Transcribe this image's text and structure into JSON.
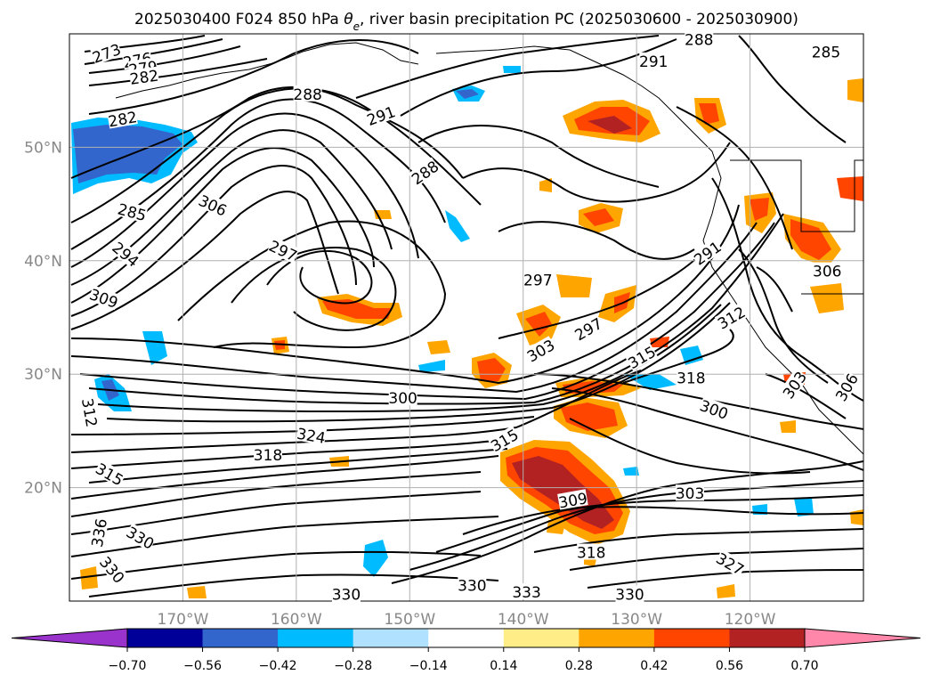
{
  "chart_data": {
    "type": "contour",
    "title": "2025030400 F024 850 hPa θe, river basin precipitation PC (2025030600 - 2025030900)",
    "title_segments": {
      "prefix": "2025030400 F024 850 hPa ",
      "symbol": "θ",
      "subscript": "e",
      "suffix": ", river basin precipitation PC (2025030600 - 2025030900)"
    },
    "extent": {
      "lon": [
        -180,
        -110
      ],
      "lat": [
        10,
        60
      ]
    },
    "grid": true,
    "lon_ticks": [
      {
        "lon": -170,
        "label": "170°W"
      },
      {
        "lon": -160,
        "label": "160°W"
      },
      {
        "lon": -150,
        "label": "150°W"
      },
      {
        "lon": -140,
        "label": "140°W"
      },
      {
        "lon": -130,
        "label": "130°W"
      },
      {
        "lon": -120,
        "label": "120°W"
      }
    ],
    "lat_ticks": [
      {
        "lat": 20,
        "label": "20°N"
      },
      {
        "lat": 30,
        "label": "30°N"
      },
      {
        "lat": 40,
        "label": "40°N"
      },
      {
        "lat": 50,
        "label": "50°N"
      }
    ],
    "colorbar": {
      "orientation": "horizontal",
      "extend": "both",
      "boundaries": [
        -0.7,
        -0.56,
        -0.42,
        -0.28,
        -0.14,
        0.14,
        0.28,
        0.42,
        0.56,
        0.7
      ],
      "labels": [
        "−0.70",
        "−0.56",
        "−0.42",
        "−0.28",
        "−0.14",
        "0.14",
        "0.28",
        "0.42",
        "0.56",
        "0.70"
      ],
      "under_color": "#9933cc",
      "colors": [
        "#000099",
        "#3366cc",
        "#00bbff",
        "#b0e2ff",
        "#ffffff",
        "#ffee88",
        "#ffa500",
        "#ff4500",
        "#b22222"
      ],
      "over_color": "#ff88aa"
    },
    "contour_labels": [
      {
        "text": "273",
        "lon": -176.7,
        "lat": 58.2,
        "rot": -20
      },
      {
        "text": "276",
        "lon": -174.0,
        "lat": 57.6,
        "rot": -10
      },
      {
        "text": "279",
        "lon": -173.5,
        "lat": 56.9,
        "rot": -8
      },
      {
        "text": "282",
        "lon": -173.4,
        "lat": 56.1,
        "rot": -8
      },
      {
        "text": "282",
        "lon": -175.3,
        "lat": 52.4,
        "rot": -10
      },
      {
        "text": "288",
        "lon": -159.0,
        "lat": 54.6,
        "rot": 0
      },
      {
        "text": "291",
        "lon": -152.5,
        "lat": 52.7,
        "rot": -20
      },
      {
        "text": "288",
        "lon": -148.6,
        "lat": 47.7,
        "rot": -35
      },
      {
        "text": "285",
        "lon": -174.5,
        "lat": 44.2,
        "rot": 15
      },
      {
        "text": "306",
        "lon": -167.4,
        "lat": 44.8,
        "rot": 25
      },
      {
        "text": "297",
        "lon": -161.2,
        "lat": 40.8,
        "rot": 25
      },
      {
        "text": "294",
        "lon": -175.1,
        "lat": 40.5,
        "rot": 40
      },
      {
        "text": "309",
        "lon": -177.0,
        "lat": 36.6,
        "rot": 20
      },
      {
        "text": "297",
        "lon": -138.7,
        "lat": 38.2,
        "rot": 0
      },
      {
        "text": "291",
        "lon": -123.7,
        "lat": 40.6,
        "rot": -35
      },
      {
        "text": "288",
        "lon": -124.5,
        "lat": 59.4,
        "rot": 0
      },
      {
        "text": "291",
        "lon": -128.5,
        "lat": 57.5,
        "rot": 0
      },
      {
        "text": "285",
        "lon": -113.3,
        "lat": 58.3,
        "rot": 0
      },
      {
        "text": "312",
        "lon": -121.6,
        "lat": 34.9,
        "rot": -30
      },
      {
        "text": "315",
        "lon": -129.5,
        "lat": 31.4,
        "rot": -30
      },
      {
        "text": "318",
        "lon": -125.2,
        "lat": 29.6,
        "rot": 0
      },
      {
        "text": "300",
        "lon": -150.6,
        "lat": 27.8,
        "rot": 0
      },
      {
        "text": "300",
        "lon": -123.2,
        "lat": 26.8,
        "rot": 20
      },
      {
        "text": "324",
        "lon": -158.7,
        "lat": 24.5,
        "rot": 10
      },
      {
        "text": "318",
        "lon": -162.5,
        "lat": 22.8,
        "rot": 0
      },
      {
        "text": "315",
        "lon": -176.5,
        "lat": 21.1,
        "rot": 30
      },
      {
        "text": "303",
        "lon": -125.3,
        "lat": 19.4,
        "rot": 0
      },
      {
        "text": "309",
        "lon": -135.6,
        "lat": 18.8,
        "rot": -10
      },
      {
        "text": "330",
        "lon": -173.8,
        "lat": 15.5,
        "rot": 30
      },
      {
        "text": "318",
        "lon": -134.0,
        "lat": 14.2,
        "rot": 0
      },
      {
        "text": "330",
        "lon": -155.6,
        "lat": 10.5,
        "rot": 0
      },
      {
        "text": "330",
        "lon": -144.5,
        "lat": 11.3,
        "rot": 0
      },
      {
        "text": "333",
        "lon": -139.7,
        "lat": 10.7,
        "rot": 0
      },
      {
        "text": "330",
        "lon": -130.6,
        "lat": 10.5,
        "rot": 0
      },
      {
        "text": "327",
        "lon": -121.8,
        "lat": 13.2,
        "rot": 30
      },
      {
        "text": "330",
        "lon": -176.3,
        "lat": 12.7,
        "rot": 50
      },
      {
        "text": "336",
        "lon": -177.3,
        "lat": 16.0,
        "rot": -80
      },
      {
        "text": "306",
        "lon": -111.4,
        "lat": 28.8,
        "rot": -60
      },
      {
        "text": "306",
        "lon": -113.2,
        "lat": 39.0,
        "rot": 0
      },
      {
        "text": "303",
        "lon": -116.0,
        "lat": 29.0,
        "rot": -55
      },
      {
        "text": "303",
        "lon": -138.4,
        "lat": 32.0,
        "rot": -30
      },
      {
        "text": "297",
        "lon": -134.2,
        "lat": 33.9,
        "rot": -30
      },
      {
        "text": "312",
        "lon": -178.3,
        "lat": 26.6,
        "rot": 80
      },
      {
        "text": "315",
        "lon": -141.6,
        "lat": 24.1,
        "rot": -30
      }
    ]
  }
}
